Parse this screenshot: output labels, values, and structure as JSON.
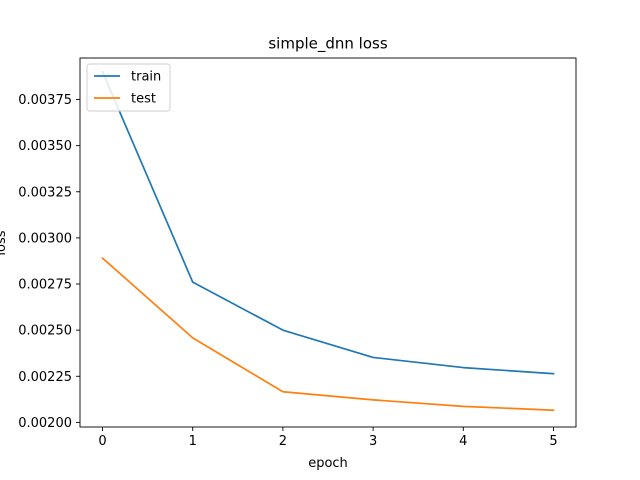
{
  "chart_data": {
    "type": "line",
    "title": "simple_dnn loss",
    "xlabel": "epoch",
    "ylabel": "loss",
    "x": [
      0,
      1,
      2,
      3,
      4,
      5
    ],
    "xticks": [
      "0",
      "1",
      "2",
      "3",
      "4",
      "5"
    ],
    "yticks": [
      "0.00200",
      "0.00225",
      "0.00250",
      "0.00275",
      "0.00300",
      "0.00325",
      "0.00350",
      "0.00375"
    ],
    "xlim": [
      -0.25,
      5.25
    ],
    "ylim": [
      0.001975,
      0.003975
    ],
    "grid": false,
    "legend": "upper left",
    "series": [
      {
        "name": "train",
        "color": "#1f77b4",
        "values": [
          0.0039,
          0.00276,
          0.0025,
          0.002352,
          0.002297,
          0.002264
        ]
      },
      {
        "name": "test",
        "color": "#ff7f0e",
        "values": [
          0.00289,
          0.002458,
          0.002166,
          0.002122,
          0.002087,
          0.002066
        ]
      }
    ]
  }
}
